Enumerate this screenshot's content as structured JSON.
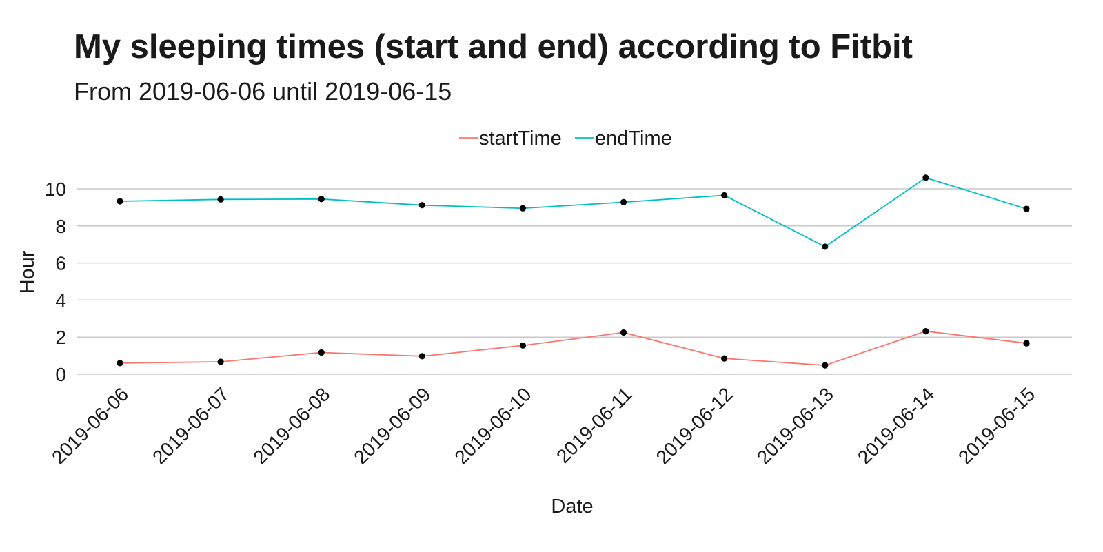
{
  "chart_data": {
    "type": "line",
    "title": "My sleeping times (start and end) according to Fitbit",
    "subtitle": "From 2019-06-06 until 2019-06-15",
    "xlabel": "Date",
    "ylabel": "Hour",
    "categories": [
      "2019-06-06",
      "2019-06-07",
      "2019-06-08",
      "2019-06-09",
      "2019-06-10",
      "2019-06-11",
      "2019-06-12",
      "2019-06-13",
      "2019-06-14",
      "2019-06-15"
    ],
    "yticks": [
      0,
      2,
      4,
      6,
      8,
      10
    ],
    "ylim": [
      0,
      10.6
    ],
    "grid": true,
    "legend_position": "top",
    "series": [
      {
        "name": "startTime",
        "color": "#F8766D",
        "values": [
          0.6,
          0.67,
          1.17,
          0.97,
          1.55,
          2.25,
          0.85,
          0.48,
          2.32,
          1.67
        ]
      },
      {
        "name": "endTime",
        "color": "#00BFC4",
        "values": [
          9.33,
          9.43,
          9.45,
          9.12,
          8.95,
          9.28,
          9.65,
          6.88,
          10.6,
          8.92
        ]
      }
    ],
    "point_color": "#000000",
    "grid_color": "#c8c8c8"
  }
}
